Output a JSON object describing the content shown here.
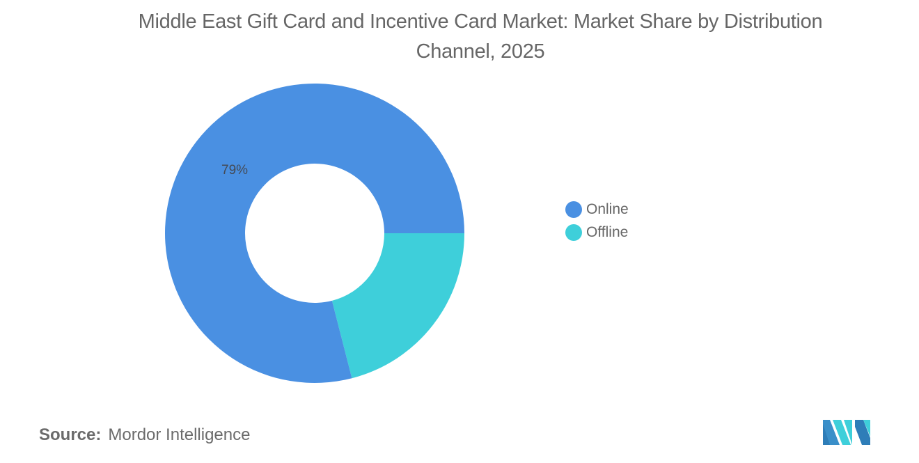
{
  "header": {
    "title": "Middle East Gift Card and Incentive Card Market: Market Share by Distribution Channel, 2025"
  },
  "chart_data": {
    "type": "pie",
    "subtype": "donut",
    "title": "Middle East Gift Card and Incentive Card Market: Market Share by Distribution Channel, 2025",
    "categories": [
      "Online",
      "Offline"
    ],
    "values": [
      79,
      21
    ],
    "unit": "%",
    "colors": [
      "#4A90E2",
      "#3ECFDA"
    ],
    "data_labels": [
      {
        "category": "Online",
        "text": "79%"
      }
    ],
    "legend_position": "right",
    "start_angle_deg": 0,
    "direction": "clockwise_offline_first"
  },
  "labels": {
    "online_pct": "79%"
  },
  "legend": {
    "items": [
      {
        "label": "Online",
        "color": "#4A90E2"
      },
      {
        "label": "Offline",
        "color": "#3ECFDA"
      }
    ]
  },
  "footer": {
    "source_key": "Source:",
    "source_value": "Mordor Intelligence",
    "logo_icon": "mordor-intelligence-logo-icon"
  }
}
